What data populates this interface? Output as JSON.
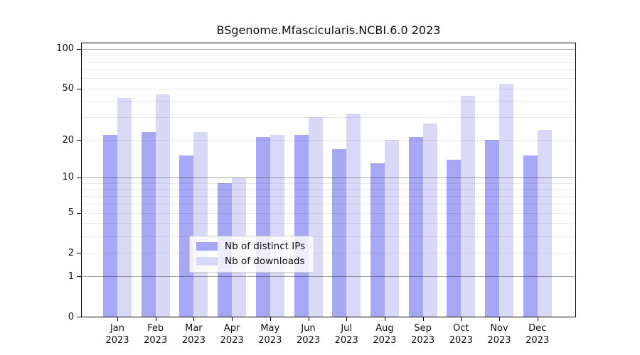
{
  "chart_data": {
    "type": "bar",
    "title": "BSgenome.Mfascicularis.NCBI.6.0 2023",
    "categories": [
      "Jan 2023",
      "Feb 2023",
      "Mar 2023",
      "Apr 2023",
      "May 2023",
      "Jun 2023",
      "Jul 2023",
      "Aug 2023",
      "Sep 2023",
      "Oct 2023",
      "Nov 2023",
      "Dec 2023"
    ],
    "month_labels": [
      "Jan",
      "Feb",
      "Mar",
      "Apr",
      "May",
      "Jun",
      "Jul",
      "Aug",
      "Sep",
      "Oct",
      "Nov",
      "Dec"
    ],
    "year_label": "2023",
    "series": [
      {
        "name": "Nb of distinct IPs",
        "color": "#a7a7f5",
        "values": [
          22,
          23,
          15,
          9,
          21,
          22,
          17,
          13,
          21,
          14,
          20,
          15
        ]
      },
      {
        "name": "Nb of downloads",
        "color": "#d9d9f7",
        "values": [
          42,
          45,
          23,
          10,
          22,
          30,
          32,
          20,
          27,
          44,
          54,
          24
        ]
      }
    ],
    "y_scale": "log10(1+value)",
    "y_axis_ticks": [
      0,
      1,
      2,
      5,
      10,
      20,
      50,
      100
    ],
    "major_gridlines": [
      1,
      10,
      100
    ],
    "minor_gridlines": [
      2,
      3,
      4,
      5,
      6,
      7,
      8,
      9,
      20,
      30,
      40,
      50,
      60,
      70,
      80,
      90
    ],
    "ylim": [
      0,
      113
    ],
    "grid": "on",
    "xlabel": "",
    "ylabel": "",
    "legend_position": "lower center"
  }
}
